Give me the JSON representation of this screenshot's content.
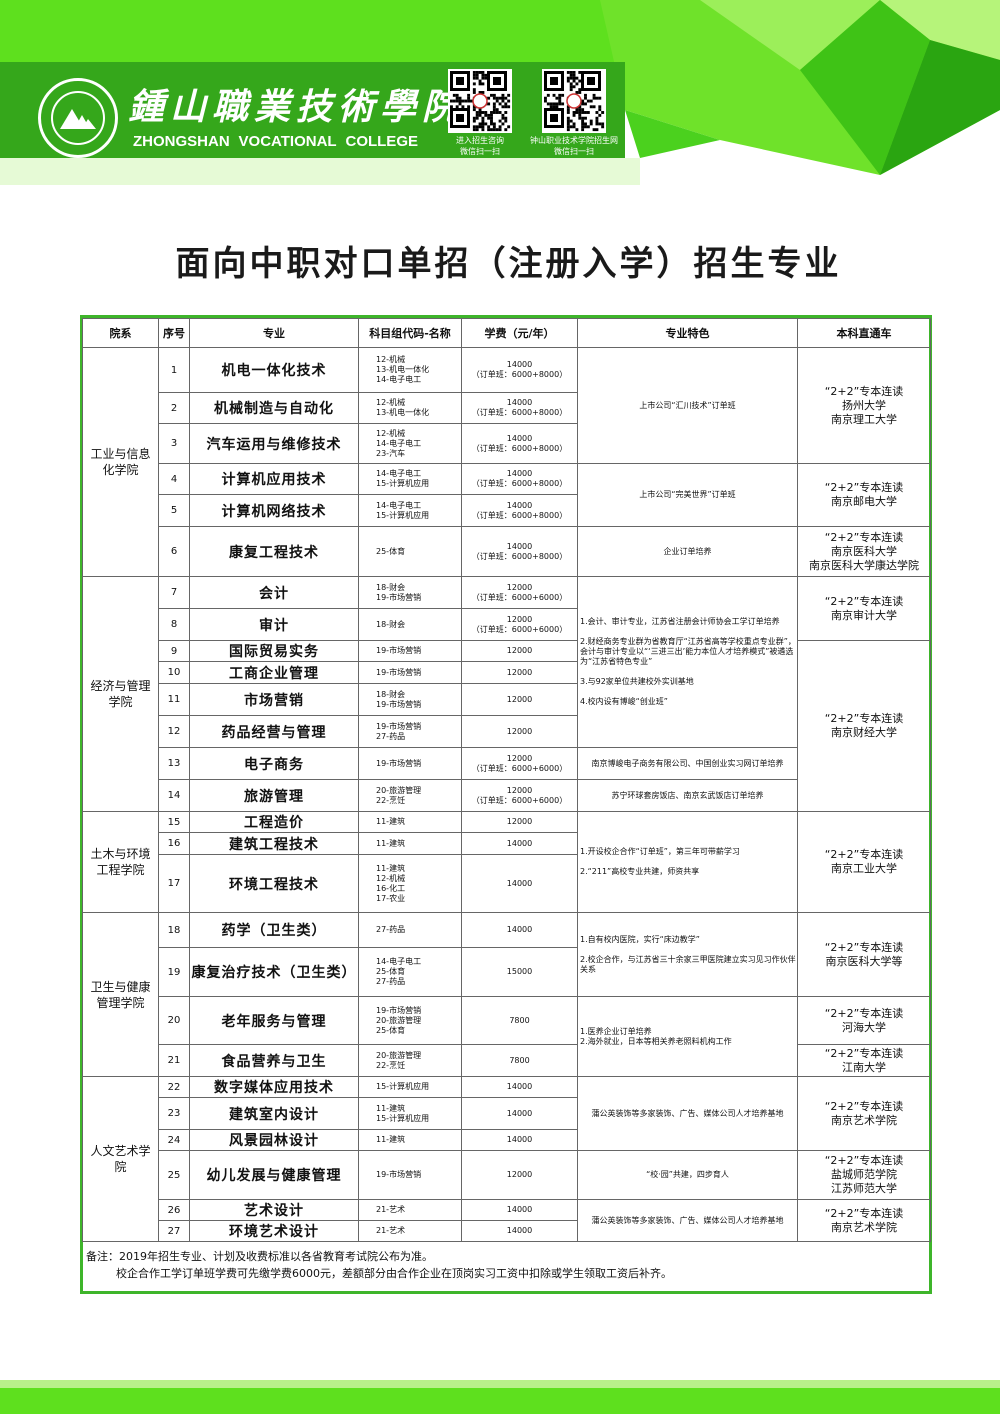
{
  "colors": {
    "banner_green": "#35a71b",
    "bright_green": "#5ee01e",
    "frame_green": "#3eb52a"
  },
  "header": {
    "seal_icon": "mountain-seal-logo",
    "logo_cn": "鍾山職業技術學院",
    "logo_en": [
      "ZHONGSHAN",
      "VOCATIONAL",
      "COLLEGE"
    ],
    "qr_codes": [
      {
        "caption": "进入招生咨询\n微信扫一扫"
      },
      {
        "caption": "钟山职业技术学院招生网\n微信扫一扫"
      }
    ]
  },
  "title": "面向中职对口单招（注册入学）招生专业",
  "table": {
    "headers": [
      "院系",
      "序号",
      "专业",
      "科目组代码-名称",
      "学费（元/年）",
      "专业特色",
      "本科直通车"
    ],
    "departments": [
      "工业与信息\n化学院",
      "经济与管理\n学院",
      "土木与环境\n工程学院",
      "卫生与健康\n管理学院",
      "人文艺术学\n院"
    ],
    "majors": [
      {
        "no": "1",
        "name": "机电一体化技术",
        "codes": "12-机械\n13-机电一体化\n14-电子电工",
        "fee": "14000\n（订单班：6000+8000）"
      },
      {
        "no": "2",
        "name": "机械制造与自动化",
        "codes": "12-机械\n13-机电一体化",
        "fee": "14000\n（订单班：6000+8000）"
      },
      {
        "no": "3",
        "name": "汽车运用与维修技术",
        "codes": "12-机械\n14-电子电工\n23-汽车",
        "fee": "14000\n（订单班：6000+8000）"
      },
      {
        "no": "4",
        "name": "计算机应用技术",
        "codes": "14-电子电工\n15-计算机应用",
        "fee": "14000\n（订单班：6000+8000）"
      },
      {
        "no": "5",
        "name": "计算机网络技术",
        "codes": "14-电子电工\n15-计算机应用",
        "fee": "14000\n（订单班：6000+8000）"
      },
      {
        "no": "6",
        "name": "康复工程技术",
        "codes": "25-体育",
        "fee": "14000\n（订单班：6000+8000）"
      },
      {
        "no": "7",
        "name": "会计",
        "codes": "18-财会\n19-市场营销",
        "fee": "12000\n（订单班：6000+6000）"
      },
      {
        "no": "8",
        "name": "审计",
        "codes": "18-财会",
        "fee": "12000\n（订单班：6000+6000）"
      },
      {
        "no": "9",
        "name": "国际贸易实务",
        "codes": "19-市场营销",
        "fee": "12000"
      },
      {
        "no": "10",
        "name": "工商企业管理",
        "codes": "19-市场营销",
        "fee": "12000"
      },
      {
        "no": "11",
        "name": "市场营销",
        "codes": "18-财会\n19-市场营销",
        "fee": "12000"
      },
      {
        "no": "12",
        "name": "药品经营与管理",
        "codes": "19-市场营销\n27-药品",
        "fee": "12000"
      },
      {
        "no": "13",
        "name": "电子商务",
        "codes": "19-市场营销",
        "fee": "12000\n（订单班：6000+6000）"
      },
      {
        "no": "14",
        "name": "旅游管理",
        "codes": "20-旅游管理\n22-烹饪",
        "fee": "12000\n（订单班：6000+6000）"
      },
      {
        "no": "15",
        "name": "工程造价",
        "codes": "11-建筑",
        "fee": "12000"
      },
      {
        "no": "16",
        "name": "建筑工程技术",
        "codes": "11-建筑",
        "fee": "14000"
      },
      {
        "no": "17",
        "name": "环境工程技术",
        "codes": "11-建筑\n12-机械\n16-化工\n17-农业",
        "fee": "14000"
      },
      {
        "no": "18",
        "name": "药学（卫生类）",
        "codes": "27-药品",
        "fee": "14000"
      },
      {
        "no": "19",
        "name": "康复治疗技术（卫生类）",
        "codes": "14-电子电工\n25-体育\n27-药品",
        "fee": "15000"
      },
      {
        "no": "20",
        "name": "老年服务与管理",
        "codes": "19-市场营销\n20-旅游管理\n25-体育",
        "fee": "7800"
      },
      {
        "no": "21",
        "name": "食品营养与卫生",
        "codes": "20-旅游管理\n22-烹饪",
        "fee": "7800"
      },
      {
        "no": "22",
        "name": "数字媒体应用技术",
        "codes": "15-计算机应用",
        "fee": "14000"
      },
      {
        "no": "23",
        "name": "建筑室内设计",
        "codes": "11-建筑\n15-计算机应用",
        "fee": "14000"
      },
      {
        "no": "24",
        "name": "风景园林设计",
        "codes": "11-建筑",
        "fee": "14000"
      },
      {
        "no": "25",
        "name": "幼儿发展与健康管理",
        "codes": "19-市场营销",
        "fee": "12000"
      },
      {
        "no": "26",
        "name": "艺术设计",
        "codes": "21-艺术",
        "fee": "14000"
      },
      {
        "no": "27",
        "name": "环境艺术设计",
        "codes": "21-艺术",
        "fee": "14000"
      }
    ],
    "features": [
      "上市公司“汇川技术”订单班",
      "上市公司“完美世界”订单班",
      "企业订单培养",
      "1.会计、审计专业，江苏省注册会计师协会工学订单培养\n\n2.财经商务专业群为省教育厅“江苏省高等学校重点专业群”，会计与审计专业以“‘三进三出’能力本位人才培养模式”被遴选为“江苏省特色专业”\n\n3.与92家单位共建校外实训基地\n\n4.校内设有博峻“创业班”",
      "南京博峻电子商务有限公司、中国创业实习网订单培养",
      "苏宁环球套房饭店、南京玄武饭店订单培养",
      "1.开设校企合作“订单班”，第三年可带薪学习\n\n2.“211”高校专业共建，师资共享",
      "1.自有校内医院，实行“床边教学”\n\n2.校企合作，与江苏省三十余家三甲医院建立实习见习作伙伴关系",
      "1.医养企业订单培养\n2.海外就业，日本等相关养老照料机构工作",
      "蒲公英装饰等多家装饰、广告、媒体公司人才培养基地",
      "“校·园”共建，四步育人",
      "蒲公英装饰等多家装饰、广告、媒体公司人才培养基地"
    ],
    "universities": [
      "“2+2”专本连读\n扬州大学\n南京理工大学",
      "“2+2”专本连读\n南京邮电大学",
      "“2+2”专本连读\n南京医科大学\n南京医科大学康达学院",
      "“2+2”专本连读\n南京审计大学",
      "“2+2”专本连读\n南京财经大学",
      "“2+2”专本连读\n南京工业大学",
      "“2+2”专本连读\n南京医科大学等",
      "“2+2”专本连读\n河海大学",
      "“2+2”专本连读\n江南大学",
      "“2+2”专本连读\n南京艺术学院",
      "“2+2”专本连读\n盐城师范学院\n江苏师范大学",
      "“2+2”专本连读\n南京艺术学院"
    ]
  },
  "notes": [
    "备注：2019年招生专业、计划及收费标准以各省教育考试院公布为准。",
    "校企合作工学订单班学费可先缴学费6000元，差额部分由合作企业在顶岗实习工资中扣除或学生领取工资后补齐。"
  ]
}
